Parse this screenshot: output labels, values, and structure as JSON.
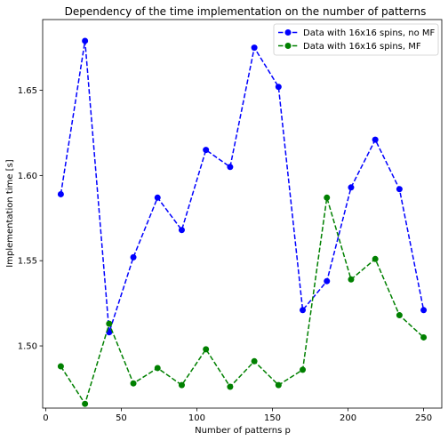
{
  "chart_data": {
    "type": "line",
    "title": "Dependency of the time implementation on the number of patterns",
    "xlabel": "Number of patterns p",
    "ylabel": "Implementation time [s]",
    "xlim": [
      -2,
      262
    ],
    "ylim": [
      1.4635,
      1.6915
    ],
    "xticks": [
      0,
      50,
      100,
      150,
      200,
      250
    ],
    "yticks": [
      1.5,
      1.55,
      1.6,
      1.65
    ],
    "ytick_labels": [
      "1.50",
      "1.55",
      "1.60",
      "1.65"
    ],
    "grid": false,
    "legend_position": "top-right",
    "x": [
      10,
      26,
      42,
      58,
      74,
      90,
      106,
      122,
      138,
      154,
      170,
      186,
      202,
      218,
      234,
      250
    ],
    "series": [
      {
        "name": "Data with 16x16 spins, no MF",
        "color": "#0000ff",
        "marker": "circle",
        "linestyle": "dashed",
        "values": [
          1.589,
          1.679,
          1.508,
          1.552,
          1.587,
          1.568,
          1.615,
          1.605,
          1.675,
          1.652,
          1.521,
          1.538,
          1.593,
          1.621,
          1.592,
          1.521
        ]
      },
      {
        "name": "Data with 16x16 spins, MF",
        "color": "#008000",
        "marker": "circle",
        "linestyle": "dashed",
        "values": [
          1.488,
          1.466,
          1.513,
          1.478,
          1.487,
          1.477,
          1.498,
          1.476,
          1.491,
          1.477,
          1.486,
          1.587,
          1.539,
          1.551,
          1.518,
          1.505
        ]
      }
    ]
  }
}
